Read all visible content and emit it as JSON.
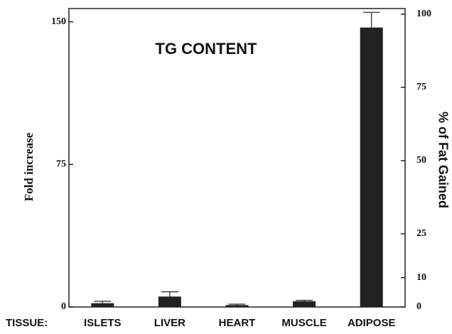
{
  "chart_data": {
    "type": "bar",
    "title": "TG CONTENT",
    "x_label": "TISSUE:",
    "y_label": "Fold increase",
    "y2_label": "% of Fat Gained",
    "categories": [
      "ISLETS",
      "LIVER",
      "HEART",
      "MUSCLE",
      "ADIPOSE"
    ],
    "values": [
      2,
      5.5,
      1,
      3,
      147
    ],
    "errors": [
      1,
      2.5,
      0.5,
      0.5,
      8
    ],
    "color": "#222222",
    "ylim": [
      0,
      154
    ],
    "yticks": [
      0,
      75,
      150
    ],
    "y2lim": [
      0,
      100
    ],
    "y2ticks": [
      0,
      10,
      25,
      50,
      75,
      100
    ]
  }
}
